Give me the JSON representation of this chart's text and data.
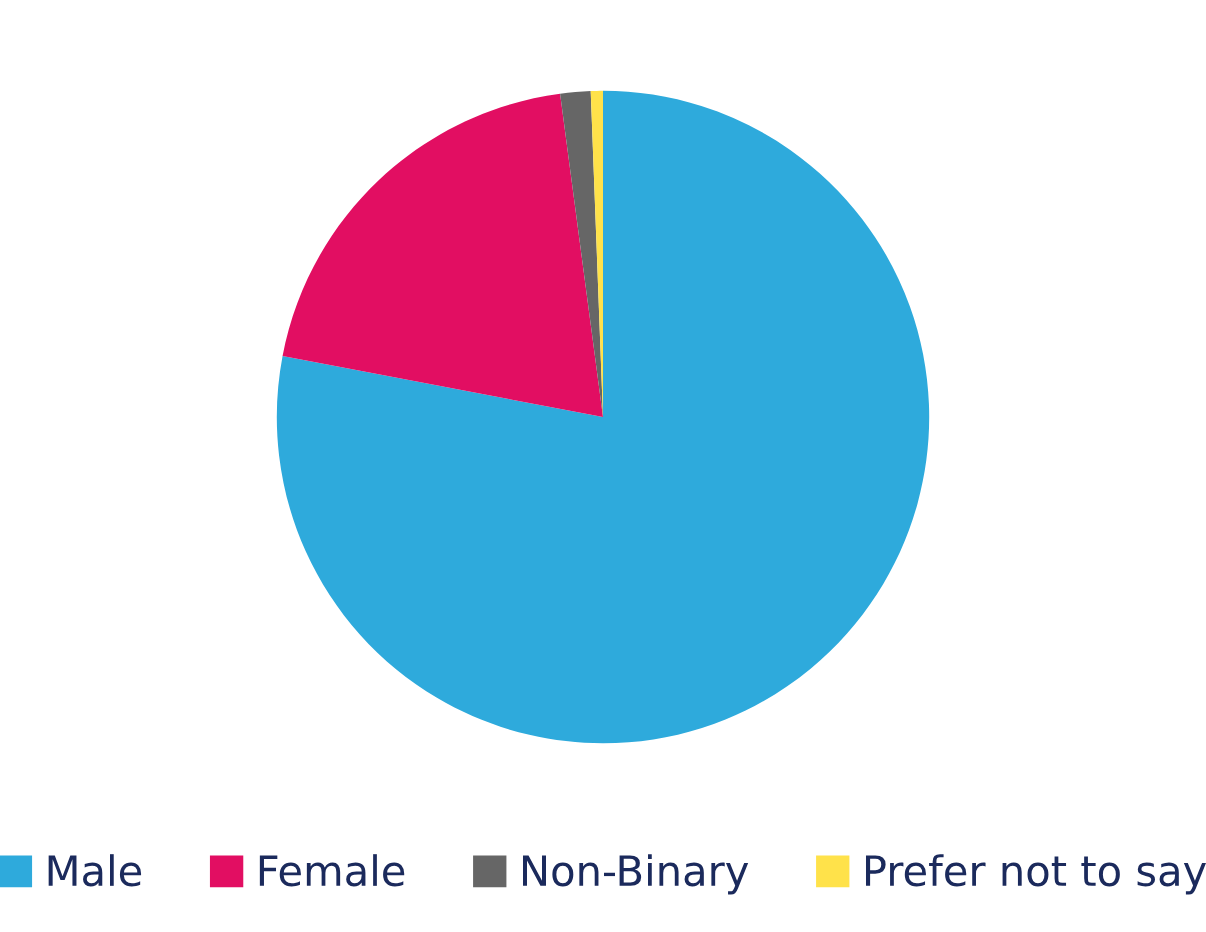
{
  "chart_data": {
    "type": "pie",
    "categories": [
      "Male",
      "Female",
      "Non-Binary",
      "Prefer not to say"
    ],
    "values": [
      78,
      19.9,
      1.5,
      0.6
    ],
    "colors": [
      "#2eaadc",
      "#e20e62",
      "#666666",
      "#ffe24a"
    ],
    "legend": "bottom"
  }
}
